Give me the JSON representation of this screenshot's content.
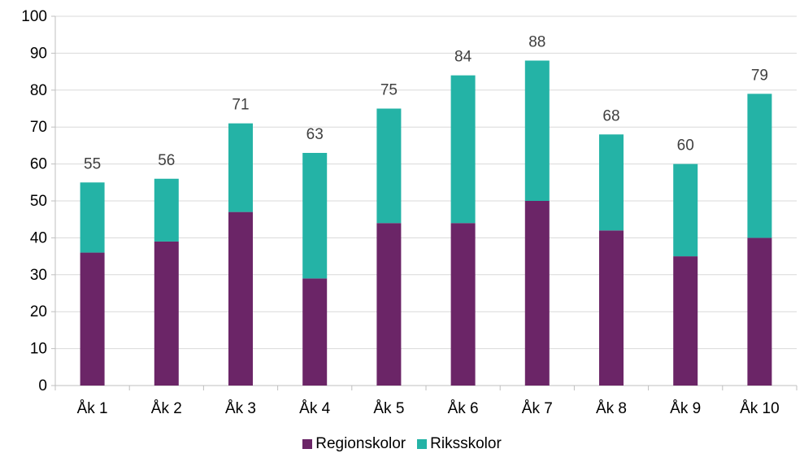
{
  "chart_data": {
    "type": "bar",
    "stacked": true,
    "categories": [
      "Åk 1",
      "Åk 2",
      "Åk 3",
      "Åk 4",
      "Åk 5",
      "Åk 6",
      "Åk 7",
      "Åk 8",
      "Åk 9",
      "Åk 10"
    ],
    "series": [
      {
        "name": "Regionskolor",
        "color": "#6B2567",
        "values": [
          36,
          39,
          47,
          29,
          44,
          44,
          50,
          42,
          35,
          40
        ]
      },
      {
        "name": "Riksskolor",
        "color": "#24B3A6",
        "values": [
          19,
          17,
          24,
          34,
          31,
          40,
          38,
          26,
          25,
          39
        ]
      }
    ],
    "totals": [
      55,
      56,
      71,
      63,
      75,
      84,
      88,
      68,
      60,
      79
    ],
    "y_ticks": [
      0,
      10,
      20,
      30,
      40,
      50,
      60,
      70,
      80,
      90,
      100
    ],
    "ylim": [
      0,
      100
    ],
    "grid": true,
    "legend_position": "bottom"
  }
}
